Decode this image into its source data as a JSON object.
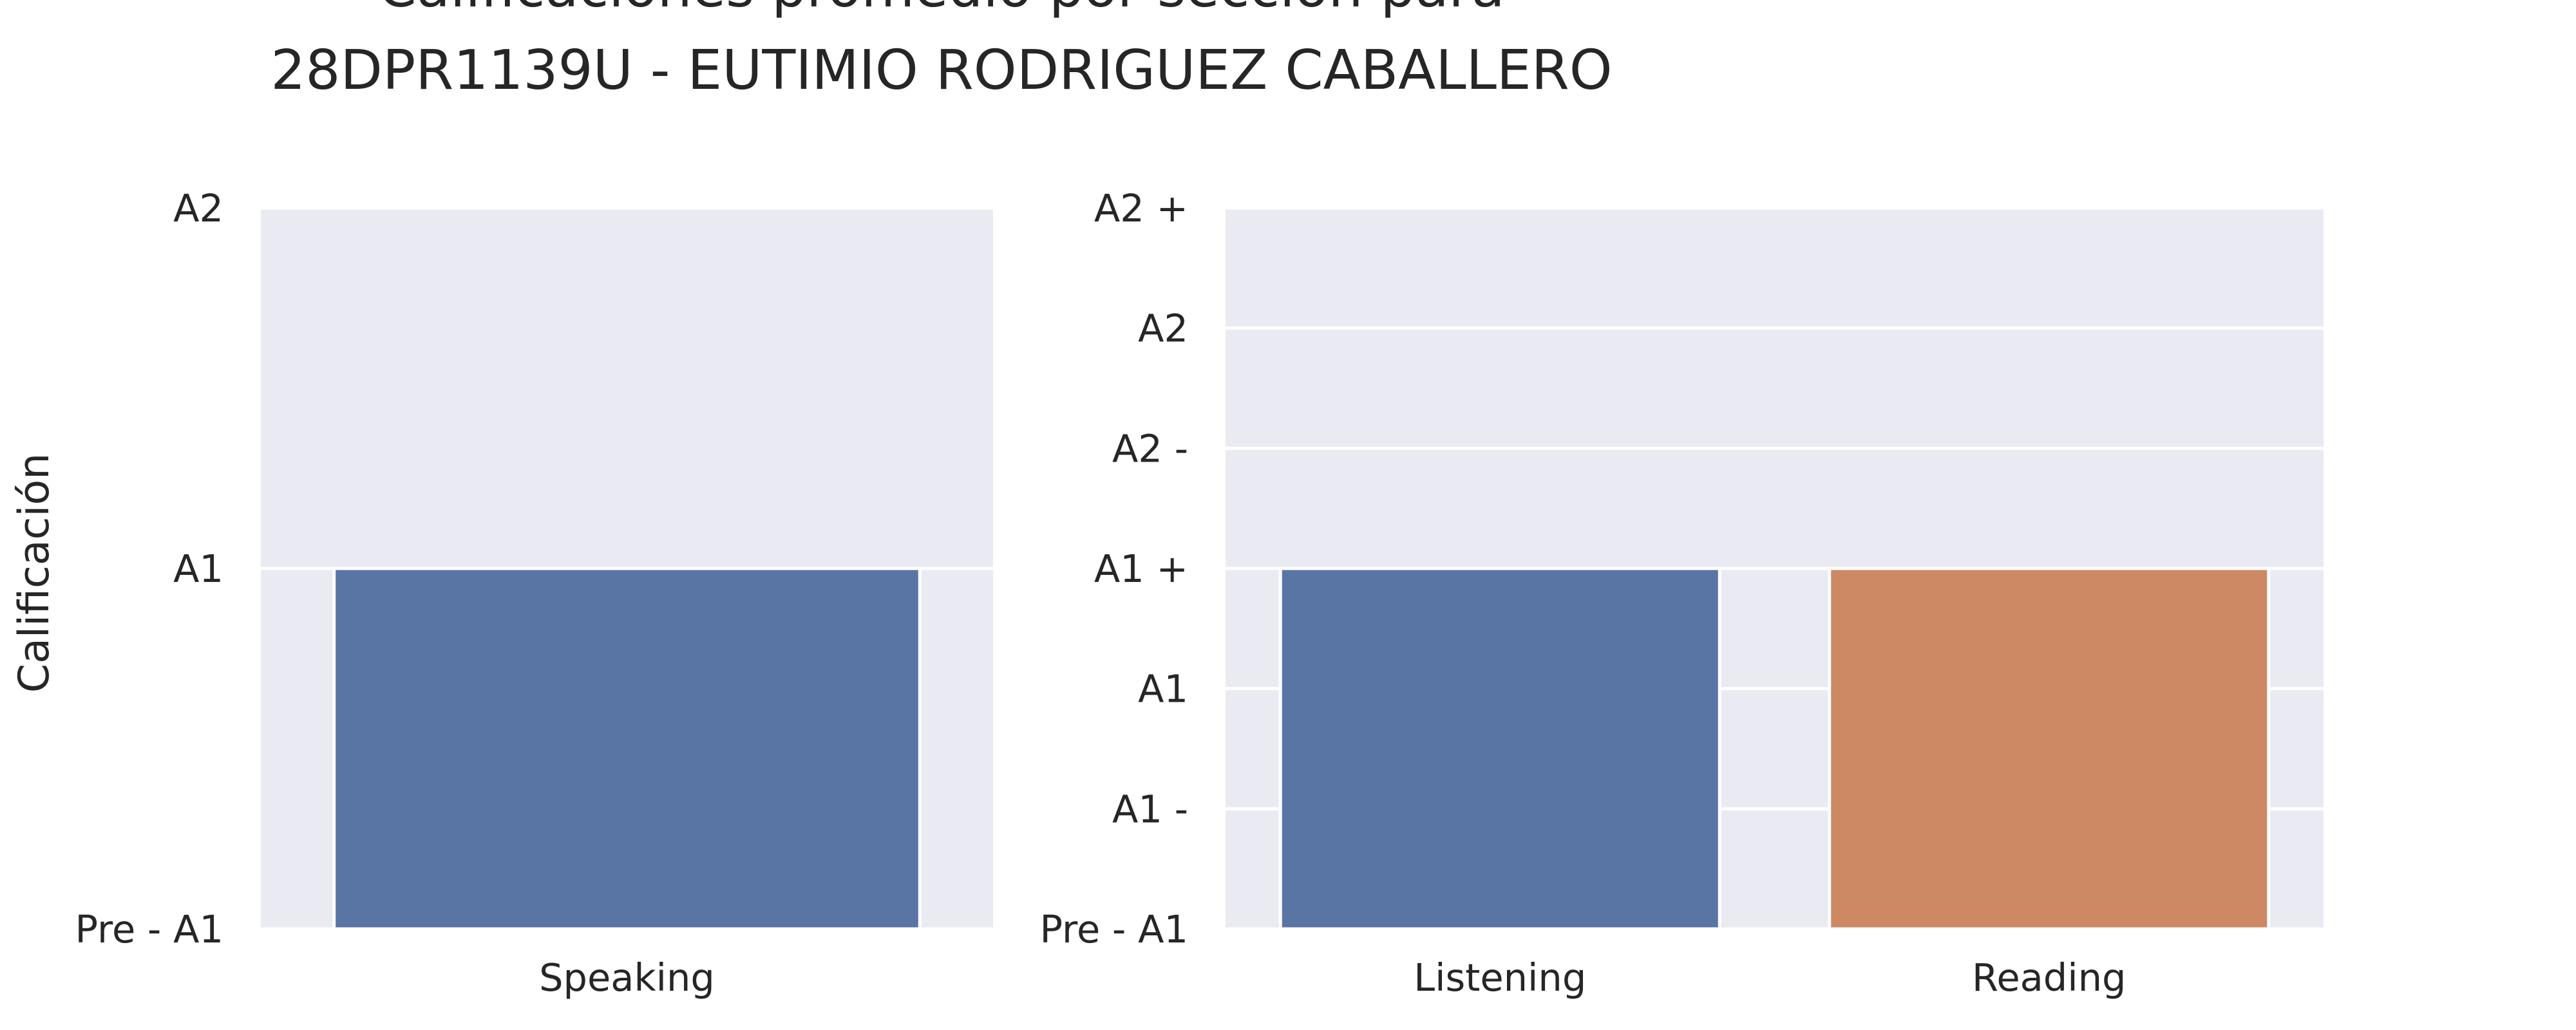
{
  "title_lines": [
    "Calificaciones promedio por sección para",
    "28DPR1139U - EUTIMIO RODRIGUEZ CABALLERO"
  ],
  "chart_data": [
    {
      "type": "bar",
      "ylabel": "Calificación",
      "xlabel": "",
      "categories": [
        "Speaking"
      ],
      "values": [
        1
      ],
      "ylim": [
        0,
        2
      ],
      "y_tick_labels": [
        "Pre - A1",
        "A1",
        "A2"
      ],
      "bar_colors": [
        "#5975a4"
      ],
      "background": "#eaeaf2",
      "grid": true
    },
    {
      "type": "bar",
      "ylabel": "",
      "xlabel": "",
      "categories": [
        "Listening",
        "Reading"
      ],
      "values": [
        3,
        3
      ],
      "ylim": [
        0,
        6
      ],
      "y_tick_labels": [
        "Pre - A1",
        "A1 -",
        "A1",
        "A1 +",
        "A2 -",
        "A2",
        "A2 +"
      ],
      "bar_colors": [
        "#5975a4",
        "#cc8963"
      ],
      "background": "#eaeaf2",
      "grid": true
    }
  ]
}
